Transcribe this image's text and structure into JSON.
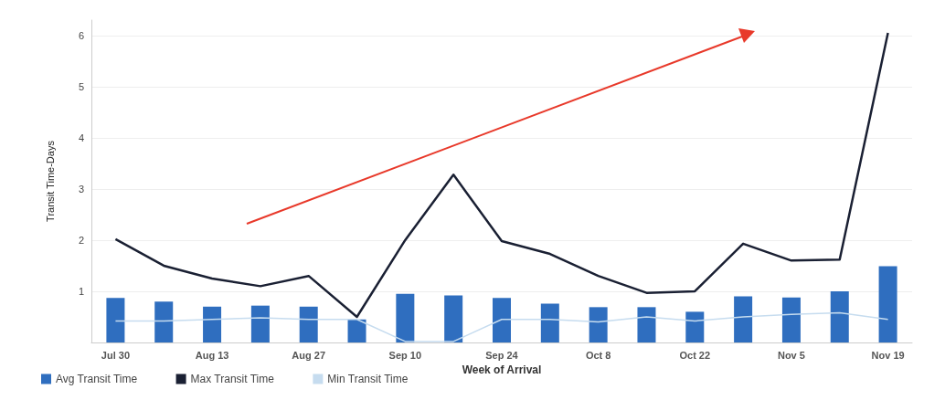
{
  "chart_data": {
    "type": "bar",
    "xlabel": "Week of Arrival",
    "ylabel": "Transit Time-Days",
    "categories": [
      "Jul 30",
      null,
      "Aug 13",
      null,
      "Aug 27",
      null,
      "Sep 10",
      null,
      "Sep 24",
      null,
      "Oct 8",
      null,
      "Oct 22",
      null,
      "Nov 5",
      null,
      "Nov 19"
    ],
    "series": [
      {
        "name": "Avg Transit Time",
        "color": "#2f6ebf",
        "values": [
          0.87,
          0.8,
          0.7,
          0.72,
          0.7,
          0.45,
          0.95,
          0.92,
          0.87,
          0.76,
          0.69,
          0.69,
          0.6,
          0.9,
          0.88,
          1.0,
          1.49
        ]
      },
      {
        "name": "Max Transit Time",
        "type": "line",
        "color": "#1a2033",
        "values": [
          2.02,
          1.5,
          1.25,
          1.1,
          1.3,
          0.5,
          2.0,
          3.28,
          1.98,
          1.73,
          1.3,
          0.97,
          1.0,
          1.93,
          1.6,
          1.62,
          6.05
        ]
      },
      {
        "name": "Min Transit Time",
        "type": "line",
        "color": "#c6dcef",
        "values": [
          0.42,
          0.42,
          0.45,
          0.48,
          0.45,
          0.45,
          0.02,
          0.02,
          0.45,
          0.45,
          0.4,
          0.5,
          0.42,
          0.5,
          0.55,
          0.58,
          0.45
        ]
      }
    ],
    "ylim": [
      0,
      6.3
    ],
    "yticks": [
      {
        "value": 0,
        "label": null
      },
      1,
      2,
      3,
      4,
      5,
      6
    ],
    "grid": "y",
    "legend": "bottom left",
    "marker": "none",
    "line_style": "solid"
  }
}
